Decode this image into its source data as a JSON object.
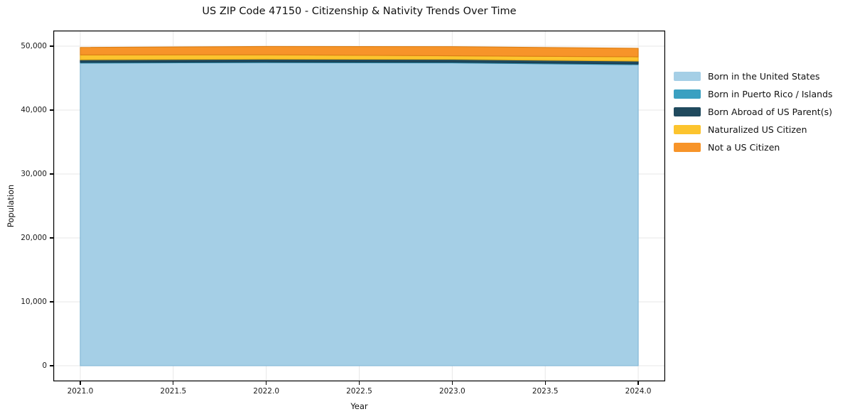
{
  "title": "US ZIP Code 47150 - Citizenship & Nativity Trends Over Time",
  "chart_data": {
    "type": "area",
    "stacked": true,
    "title": "US ZIP Code 47150 - Citizenship & Nativity Trends Over Time",
    "xlabel": "Year",
    "ylabel": "Population",
    "x": [
      2021,
      2022,
      2023,
      2024
    ],
    "series": [
      {
        "name": "Born in the United States",
        "color": "#A5CFE6",
        "edge": "#7FB6D5",
        "values": [
          47350,
          47420,
          47380,
          47100
        ]
      },
      {
        "name": "Born in Puerto Rico / Islands",
        "color": "#3AA0C1",
        "edge": "#2E86A3",
        "values": [
          120,
          120,
          120,
          120
        ]
      },
      {
        "name": "Born Abroad of US Parent(s)",
        "color": "#204A5E",
        "edge": "#16374A",
        "values": [
          400,
          420,
          430,
          440
        ]
      },
      {
        "name": "Naturalized US Citizen",
        "color": "#FCC42E",
        "edge": "#E3A816",
        "values": [
          760,
          690,
          560,
          670
        ]
      },
      {
        "name": "Not a US Citizen",
        "color": "#F79429",
        "edge": "#DB7E14",
        "values": [
          1170,
          1300,
          1440,
          1330
        ]
      }
    ],
    "xlim": [
      2020.855,
      2024.145
    ],
    "ylim": [
      -2444,
      52444
    ],
    "xticks": [
      {
        "v": 2021.0,
        "label": "2021.0"
      },
      {
        "v": 2021.5,
        "label": "2021.5"
      },
      {
        "v": 2022.0,
        "label": "2022.0"
      },
      {
        "v": 2022.5,
        "label": "2022.5"
      },
      {
        "v": 2023.0,
        "label": "2023.0"
      },
      {
        "v": 2023.5,
        "label": "2023.5"
      },
      {
        "v": 2024.0,
        "label": "2024.0"
      }
    ],
    "yticks": [
      {
        "v": 0,
        "label": "0"
      },
      {
        "v": 10000,
        "label": "10,000"
      },
      {
        "v": 20000,
        "label": "20,000"
      },
      {
        "v": 30000,
        "label": "30,000"
      },
      {
        "v": 40000,
        "label": "40,000"
      },
      {
        "v": 50000,
        "label": "50,000"
      }
    ],
    "grid": true,
    "grid_color": "#E7E7E7",
    "spine_color": "#000000",
    "legend_position": "right-outside"
  }
}
